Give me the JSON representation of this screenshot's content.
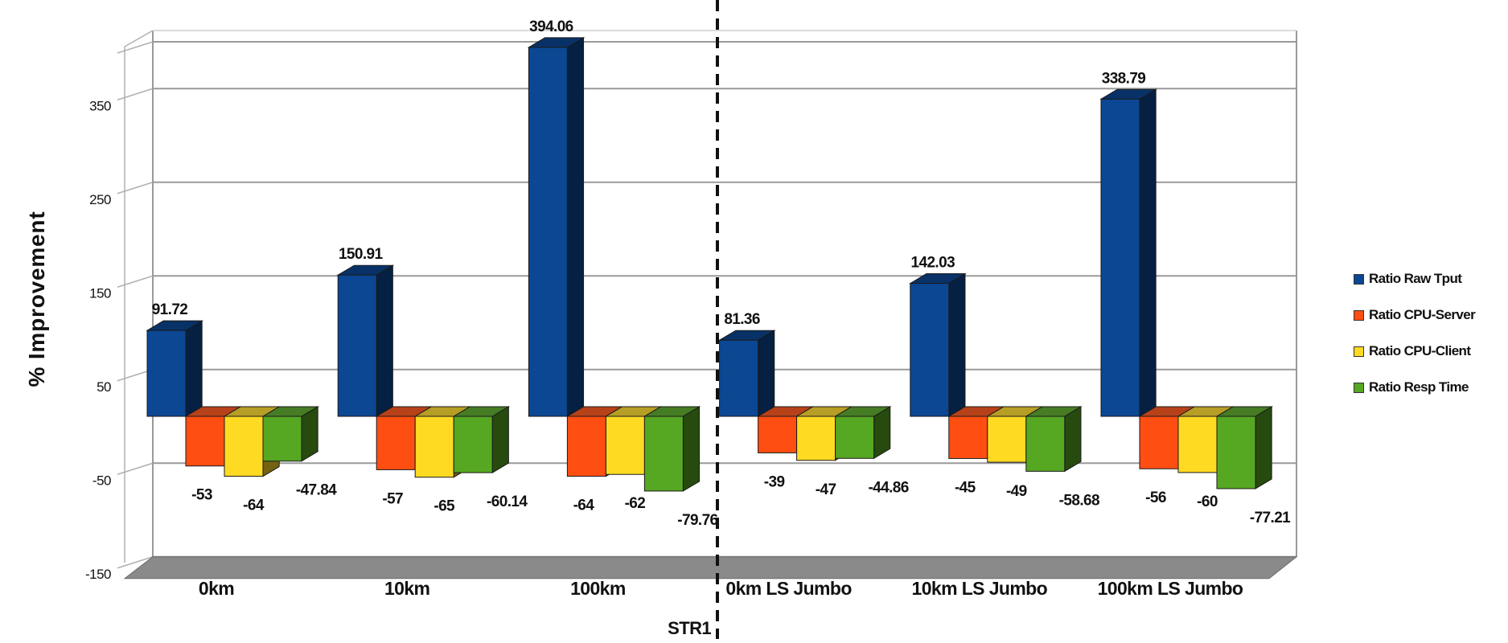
{
  "chart_data": {
    "type": "bar",
    "ylabel": "% Improvement",
    "ylim": [
      -150,
      400
    ],
    "yticks": [
      -150,
      -50,
      50,
      150,
      250,
      350
    ],
    "grid": true,
    "legend_position": "right",
    "categories": [
      "0km",
      "10km",
      "100km",
      "0km LS Jumbo",
      "10km LS Jumbo",
      "100km LS Jumbo"
    ],
    "series": [
      {
        "name": "Ratio Raw Tput",
        "color": "#0B4793",
        "values": [
          91.72,
          150.91,
          394.06,
          81.36,
          142.03,
          338.79
        ]
      },
      {
        "name": "Ratio CPU-Server",
        "color": "#FF4E12",
        "values": [
          -53,
          -57,
          -64,
          -39,
          -45,
          -56
        ]
      },
      {
        "name": "Ratio CPU-Client",
        "color": "#FFDA23",
        "values": [
          -64,
          -65,
          -62,
          -47,
          -49,
          -60
        ]
      },
      {
        "name": "Ratio Resp Time",
        "color": "#56A722",
        "values": [
          -47.84,
          -60.14,
          -79.76,
          -44.86,
          -58.68,
          -77.21
        ]
      }
    ],
    "annotations": [
      {
        "text": "STR1",
        "divider_after_category": 2
      }
    ]
  }
}
